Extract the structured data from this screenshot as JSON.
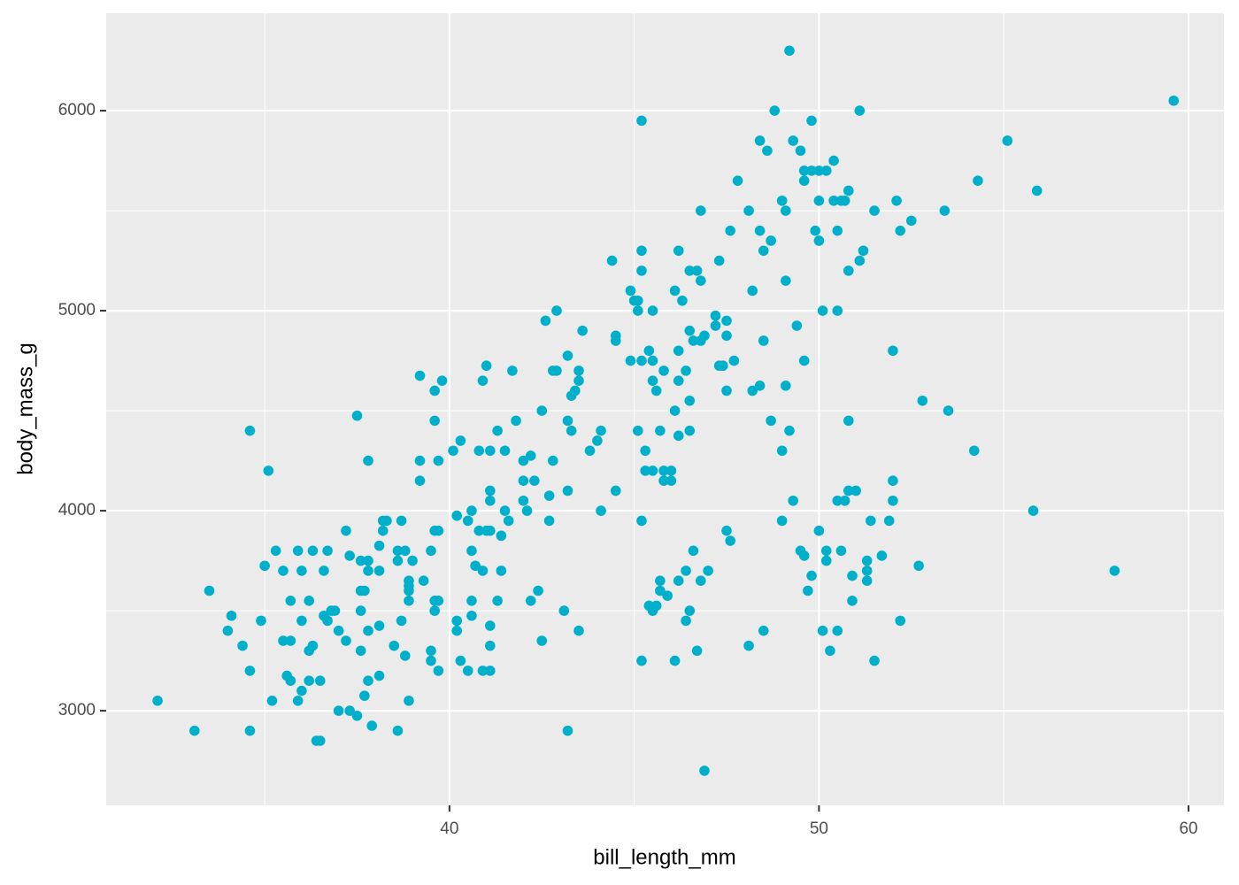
{
  "chart_data": {
    "type": "scatter",
    "x_label": "bill_length_mm",
    "y_label": "body_mass_g",
    "color": "#00B0CA",
    "grid": true,
    "xlim": [
      30.71,
      60.96
    ],
    "ylim": [
      2527,
      6487
    ],
    "xticks": [
      40,
      50,
      60
    ],
    "yticks": [
      3000,
      4000,
      5000,
      6000
    ],
    "minor_xgrid": [
      35,
      45,
      55
    ],
    "minor_ygrid": [
      3500,
      4500,
      5500
    ],
    "x": [
      32.1,
      33.1,
      33.5,
      34.0,
      34.1,
      34.4,
      34.6,
      34.6,
      34.6,
      34.9,
      35.0,
      35.1,
      35.2,
      35.3,
      35.5,
      35.5,
      35.6,
      35.7,
      35.7,
      35.7,
      35.9,
      35.9,
      36.0,
      36.0,
      36.0,
      36.2,
      36.2,
      36.2,
      36.3,
      36.3,
      36.4,
      36.5,
      36.5,
      36.6,
      36.6,
      36.7,
      36.7,
      36.8,
      36.9,
      37.0,
      37.0,
      37.2,
      37.2,
      37.3,
      37.3,
      37.5,
      37.5,
      37.6,
      37.6,
      37.6,
      37.6,
      37.7,
      37.7,
      37.8,
      37.8,
      37.8,
      37.8,
      37.8,
      37.9,
      38.1,
      38.1,
      38.1,
      38.1,
      38.2,
      38.2,
      38.3,
      38.5,
      38.6,
      38.6,
      38.6,
      38.7,
      38.7,
      38.8,
      38.8,
      38.9,
      38.9,
      38.9,
      38.9,
      38.9,
      39.0,
      39.2,
      39.2,
      39.2,
      39.3,
      39.5,
      39.5,
      39.5,
      39.6,
      39.6,
      39.6,
      39.6,
      39.6,
      39.7,
      39.7,
      39.7,
      39.7,
      39.8,
      40.1,
      40.2,
      40.2,
      40.2,
      40.3,
      40.3,
      40.5,
      40.5,
      40.6,
      40.6,
      40.6,
      40.6,
      40.7,
      40.8,
      40.8,
      40.9,
      40.9,
      40.9,
      41.0,
      41.0,
      41.1,
      41.1,
      41.1,
      41.1,
      41.1,
      41.1,
      41.1,
      41.3,
      41.3,
      41.4,
      41.4,
      41.5,
      41.5,
      41.6,
      41.7,
      41.8,
      42.0,
      42.0,
      42.0,
      42.1,
      42.2,
      42.2,
      42.3,
      42.4,
      42.5,
      42.5,
      42.6,
      42.7,
      42.7,
      42.8,
      42.8,
      42.9,
      42.9,
      43.1,
      43.2,
      43.2,
      43.2,
      43.2,
      43.3,
      43.3,
      43.4,
      43.5,
      43.5,
      43.5,
      43.6,
      43.8,
      44.0,
      44.1,
      44.1,
      44.4,
      44.5,
      44.5,
      44.5,
      44.9,
      44.9,
      45.0,
      45.1,
      45.1,
      45.1,
      45.2,
      45.2,
      45.2,
      45.2,
      45.2,
      45.2,
      45.3,
      45.3,
      45.4,
      45.4,
      45.5,
      45.5,
      45.5,
      45.5,
      45.5,
      45.6,
      45.6,
      45.7,
      45.7,
      45.7,
      45.8,
      45.8,
      45.8,
      45.9,
      46.0,
      46.0,
      46.1,
      46.1,
      46.1,
      46.2,
      46.2,
      46.2,
      46.2,
      46.2,
      46.3,
      46.4,
      46.4,
      46.4,
      46.5,
      46.5,
      46.5,
      46.5,
      46.5,
      46.6,
      46.6,
      46.7,
      46.7,
      46.8,
      46.8,
      46.8,
      46.8,
      46.9,
      46.9,
      47.0,
      47.2,
      47.2,
      47.3,
      47.3,
      47.4,
      47.5,
      47.5,
      47.5,
      47.5,
      47.6,
      47.6,
      47.7,
      47.8,
      48.1,
      48.1,
      48.2,
      48.2,
      48.4,
      48.4,
      48.4,
      48.5,
      48.5,
      48.5,
      48.6,
      48.7,
      48.7,
      48.8,
      49.0,
      49.0,
      49.0,
      49.1,
      49.1,
      49.1,
      49.2,
      49.2,
      49.3,
      49.3,
      49.4,
      49.5,
      49.5,
      49.6,
      49.6,
      49.6,
      49.6,
      49.7,
      49.8,
      49.8,
      49.8,
      49.9,
      50.0,
      50.0,
      50.0,
      50.0,
      50.1,
      50.1,
      50.2,
      50.2,
      50.2,
      50.3,
      50.4,
      50.4,
      50.5,
      50.5,
      50.5,
      50.5,
      50.6,
      50.6,
      50.7,
      50.7,
      50.8,
      50.8,
      50.8,
      50.8,
      50.9,
      50.9,
      51.0,
      51.1,
      51.1,
      51.2,
      51.3,
      51.3,
      51.3,
      51.4,
      51.5,
      51.5,
      51.7,
      51.9,
      52.0,
      52.0,
      52.0,
      52.1,
      52.2,
      52.2,
      52.5,
      52.7,
      52.8,
      53.4,
      53.5,
      54.2,
      54.3,
      55.1,
      55.8,
      55.9,
      58.0,
      59.6
    ],
    "values": [
      3050,
      2900,
      3600,
      3400,
      3475,
      3325,
      2900,
      3200,
      4400,
      3450,
      3725,
      4200,
      3050,
      3800,
      3700,
      3350,
      3175,
      3550,
      3150,
      3350,
      3800,
      3050,
      3700,
      3450,
      3100,
      3550,
      3300,
      3150,
      3800,
      3325,
      2850,
      2850,
      3150,
      3700,
      3475,
      3800,
      3450,
      3500,
      3500,
      3400,
      3000,
      3900,
      3350,
      3775,
      3000,
      2975,
      4475,
      3750,
      3600,
      3300,
      3500,
      3075,
      3600,
      4250,
      3700,
      3750,
      3400,
      3150,
      2925,
      3700,
      3425,
      3175,
      3825,
      3900,
      3950,
      3950,
      3325,
      2900,
      3800,
      3750,
      3450,
      3950,
      3800,
      3275,
      3600,
      3625,
      3650,
      3550,
      3050,
      3750,
      4675,
      4250,
      4150,
      3650,
      3800,
      3300,
      3250,
      4600,
      4450,
      3550,
      3500,
      3900,
      3200,
      3550,
      4250,
      3900,
      4650,
      4300,
      3975,
      3450,
      3400,
      4350,
      3250,
      3950,
      3200,
      4000,
      3800,
      3550,
      3475,
      3725,
      4300,
      3900,
      4650,
      3700,
      3200,
      4725,
      3900,
      4300,
      4100,
      4050,
      3425,
      3325,
      3200,
      3900,
      4400,
      3550,
      3875,
      3700,
      4000,
      4300,
      3950,
      4700,
      4450,
      4250,
      4050,
      4150,
      4000,
      4275,
      3550,
      4150,
      3600,
      3350,
      4500,
      4950,
      3950,
      4075,
      4250,
      4700,
      5000,
      4700,
      3500,
      2900,
      4775,
      4450,
      4100,
      4400,
      4575,
      4600,
      4700,
      4650,
      3400,
      4900,
      4300,
      4350,
      4400,
      4000,
      5250,
      4100,
      4850,
      4875,
      5100,
      4750,
      5050,
      4400,
      5000,
      5050,
      4750,
      5950,
      3950,
      3250,
      5300,
      5200,
      4200,
      4300,
      4800,
      3525,
      4750,
      5000,
      4650,
      3500,
      4200,
      3525,
      4600,
      3650,
      4400,
      3600,
      4200,
      4150,
      4700,
      3575,
      4200,
      4150,
      3250,
      5100,
      4500,
      3650,
      4650,
      4375,
      5300,
      4800,
      5050,
      4700,
      3700,
      3450,
      5200,
      4900,
      4550,
      4400,
      3500,
      4850,
      3800,
      5200,
      3300,
      5150,
      5500,
      3650,
      4850,
      2700,
      4875,
      3700,
      4925,
      4975,
      5250,
      4725,
      4725,
      4950,
      4875,
      4600,
      3900,
      3850,
      5400,
      4750,
      5650,
      3325,
      5500,
      4600,
      5100,
      5850,
      5400,
      4625,
      3400,
      5300,
      4850,
      5800,
      5350,
      4450,
      6000,
      3950,
      4300,
      5550,
      5500,
      5150,
      4625,
      6300,
      4400,
      4050,
      5850,
      4925,
      5800,
      3800,
      5700,
      5650,
      4750,
      3775,
      3600,
      5950,
      5700,
      3675,
      5400,
      5700,
      3900,
      5350,
      5550,
      5000,
      3400,
      5700,
      3800,
      3750,
      3300,
      5750,
      5550,
      4050,
      5400,
      5000,
      3400,
      5550,
      3800,
      4050,
      5550,
      4100,
      5600,
      5200,
      4450,
      3675,
      3550,
      4100,
      6000,
      5250,
      5300,
      3750,
      3700,
      3650,
      3950,
      3250,
      5500,
      3775,
      3950,
      4800,
      4050,
      4150,
      5550,
      3450,
      5400,
      5450,
      3725,
      4550,
      5500,
      4500,
      4300,
      5650,
      5850,
      4000,
      5600,
      3700,
      6050
    ]
  }
}
